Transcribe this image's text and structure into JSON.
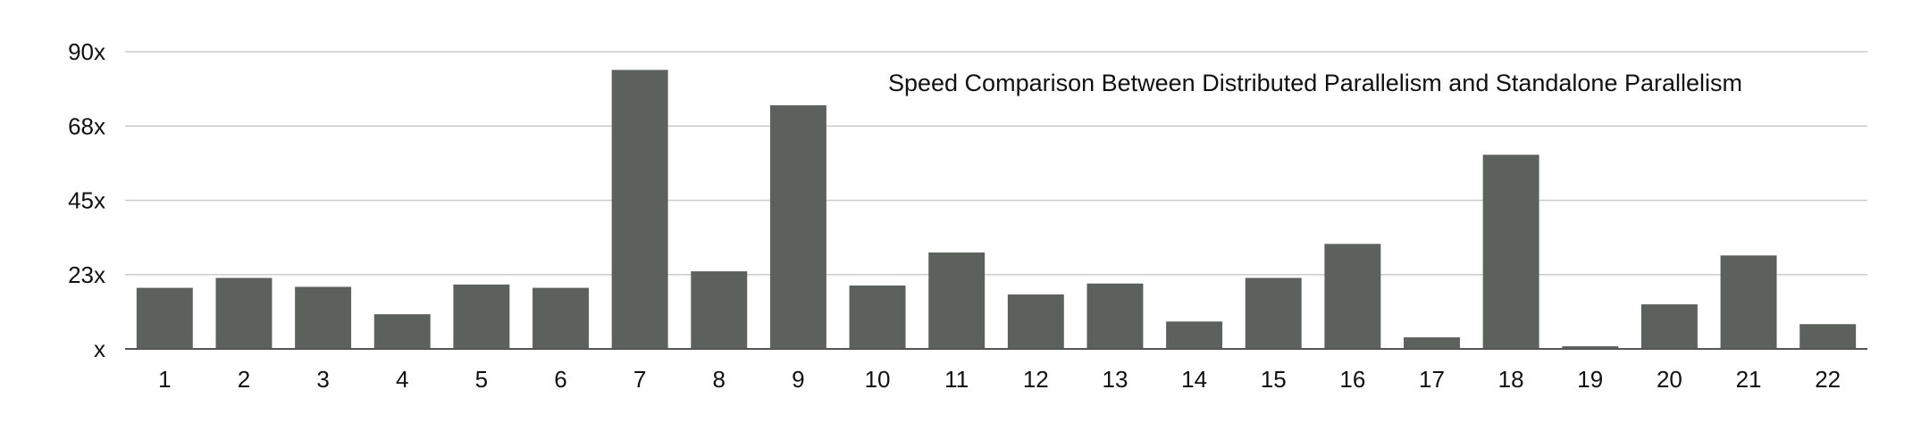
{
  "chart_data": {
    "type": "bar",
    "title": "Speed Comparison Between Distributed Parallelism and Standalone Parallelism",
    "xlabel": "",
    "ylabel": "",
    "categories": [
      "1",
      "2",
      "3",
      "4",
      "5",
      "6",
      "7",
      "8",
      "9",
      "10",
      "11",
      "12",
      "13",
      "14",
      "15",
      "16",
      "17",
      "18",
      "19",
      "20",
      "21",
      "22"
    ],
    "values": [
      18.5,
      21.5,
      18.8,
      10.5,
      19.5,
      18.5,
      84.5,
      23.5,
      73.8,
      19.2,
      29.2,
      16.5,
      19.8,
      8.3,
      21.5,
      31.8,
      3.5,
      58.8,
      0.8,
      13.5,
      28.3,
      7.5
    ],
    "y_ticks": [
      {
        "value": 0,
        "label": "x"
      },
      {
        "value": 22.5,
        "label": "23x"
      },
      {
        "value": 45,
        "label": "45x"
      },
      {
        "value": 67.5,
        "label": "68x"
      },
      {
        "value": 90,
        "label": "90x"
      }
    ],
    "ylim": [
      0,
      90
    ],
    "grid": true,
    "legend": "none",
    "bar_color": "#5d615e",
    "grid_color": "#cccccc",
    "axis_color": "#555555"
  }
}
